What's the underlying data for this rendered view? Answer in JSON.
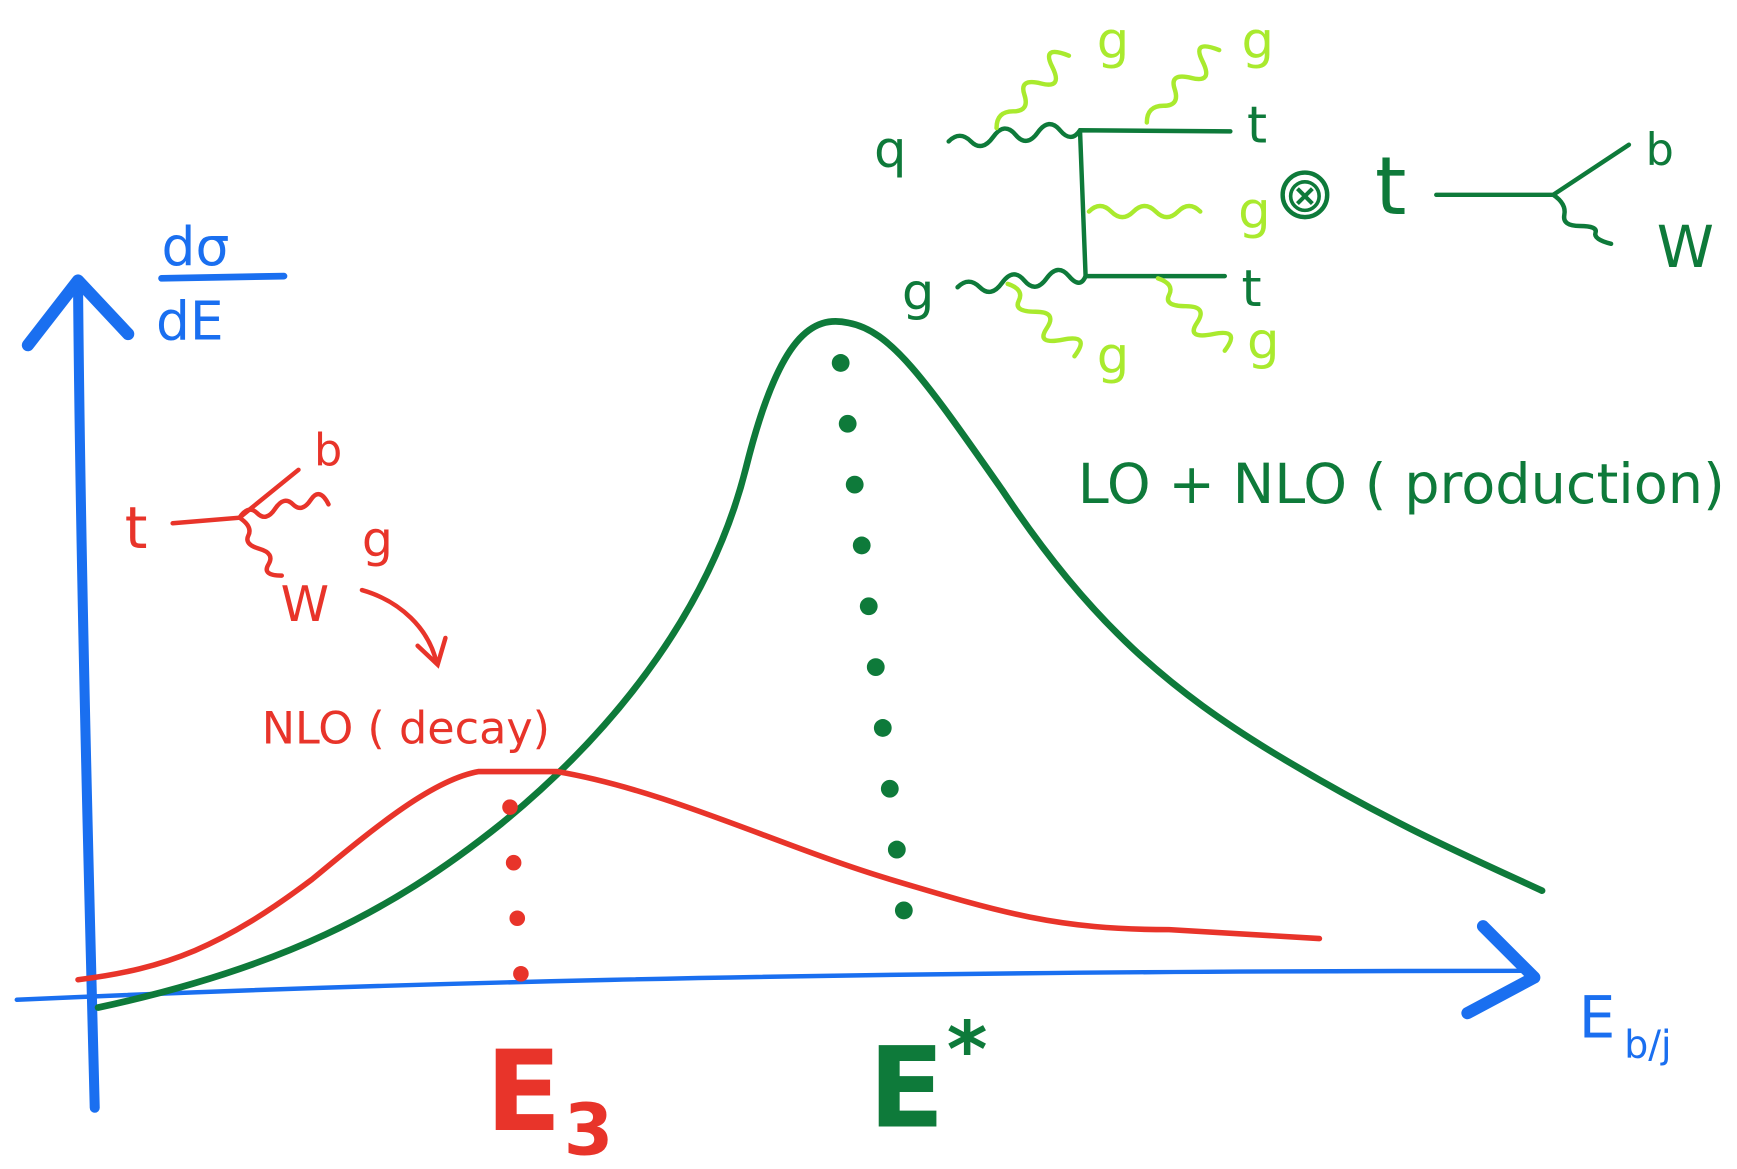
{
  "axes": {
    "y_label": {
      "numerator": "dσ",
      "denominator": "dE"
    },
    "x_label": {
      "main": "E",
      "sub": "b/j"
    }
  },
  "markers": [
    {
      "main": "E",
      "sub": "3"
    },
    {
      "main": "E",
      "sup": "*"
    }
  ],
  "curves": [
    {
      "label": "NLO ( decay)"
    },
    {
      "label": "LO + NLO ( production)"
    }
  ],
  "decay_diagram": {
    "labels": [
      "t",
      "b",
      "g",
      "W"
    ]
  },
  "production_diagram": {
    "incoming": [
      "q",
      "g"
    ],
    "outgoing": [
      "t",
      "t"
    ],
    "gluons": [
      "g",
      "g",
      "g",
      "g",
      "g"
    ],
    "times": "⊗",
    "decay_top": "t",
    "decay_products": [
      "b",
      "W"
    ]
  }
}
